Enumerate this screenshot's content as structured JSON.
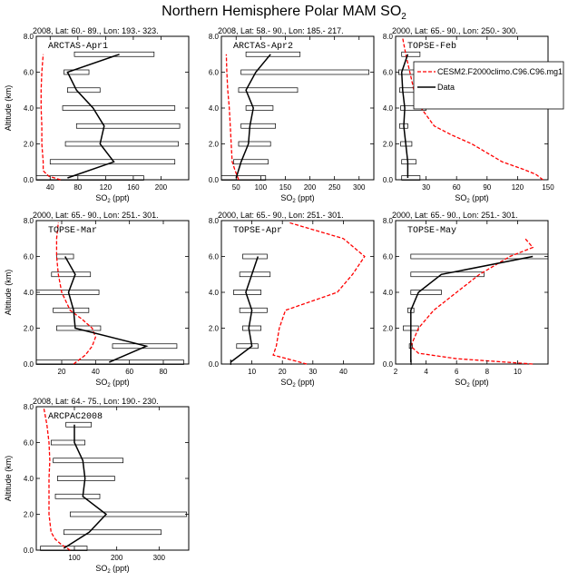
{
  "figure": {
    "title_main": "Northern Hemisphere Polar MAM SO",
    "title_sub": "2",
    "ylabel": "Altitude (km)",
    "xlabel_main": "SO",
    "xlabel_sub": "2",
    "xlabel_unit": " (ppt)"
  },
  "legend": {
    "model": "CESM2.F2000climo.C96.C96.mg1",
    "data": "Data",
    "model_color": "#ff0000",
    "data_color": "#000000"
  },
  "chart_data": [
    {
      "type": "line",
      "header": "2008, Lat:  60.- 89., Lon: 193.- 323.",
      "label": "ARCTAS-Apr1",
      "xlim": [
        20,
        240
      ],
      "xticks": [
        40,
        80,
        120,
        160,
        200
      ],
      "ylim": [
        0,
        8
      ],
      "yticks": [
        0,
        2,
        4,
        6,
        8
      ],
      "obs": {
        "alt": [
          0.1,
          1.0,
          2.0,
          3.0,
          4.0,
          5.0,
          6.0,
          7.0
        ],
        "mean": [
          65,
          132,
          112,
          118,
          102,
          78,
          65,
          140
        ],
        "min": [
          20,
          40,
          62,
          78,
          58,
          65,
          60,
          75
        ],
        "max": [
          175,
          220,
          225,
          227,
          220,
          112,
          96,
          190
        ]
      },
      "model": {
        "alt": [
          0,
          0.2,
          0.5,
          1.0,
          2.0,
          3.0,
          4.0,
          5.0,
          6.0,
          7.0
        ],
        "value": [
          55,
          38,
          30,
          30,
          28,
          28,
          27,
          27,
          28,
          30
        ]
      }
    },
    {
      "type": "line",
      "header": "2008, Lat:  58.- 90., Lon: 185.- 217.",
      "label": "ARCTAS-Apr2",
      "xlim": [
        20,
        330
      ],
      "xticks": [
        50,
        100,
        150,
        200,
        250,
        300
      ],
      "ylim": [
        0,
        8
      ],
      "yticks": [
        0,
        2,
        4,
        6,
        8
      ],
      "obs": {
        "alt": [
          0.1,
          1.0,
          2.0,
          3.0,
          4.0,
          5.0,
          6.0,
          7.0
        ],
        "mean": [
          50,
          60,
          75,
          78,
          85,
          70,
          90,
          120
        ],
        "min": [
          20,
          45,
          55,
          60,
          70,
          55,
          60,
          70
        ],
        "max": [
          110,
          115,
          120,
          130,
          125,
          175,
          320,
          180
        ]
      },
      "model": {
        "alt": [
          0,
          0.5,
          1.0,
          2.0,
          3.0,
          4.0,
          5.0,
          6.0,
          7.0
        ],
        "value": [
          55,
          48,
          42,
          40,
          38,
          36,
          33,
          31,
          30
        ]
      }
    },
    {
      "type": "line",
      "header": "2000, Lat: 65.- 90., Lon: 250.- 300.",
      "label": "TOPSE-Feb",
      "xlim": [
        0,
        150
      ],
      "xticks": [
        0,
        30,
        60,
        90,
        120,
        150
      ],
      "xticklabels": [
        "",
        "30",
        "60",
        "90",
        "120",
        "150"
      ],
      "ylim": [
        0,
        8
      ],
      "yticks": [
        0,
        2,
        4,
        6,
        8
      ],
      "obs": {
        "alt": [
          0.1,
          1.0,
          2.0,
          3.0,
          4.0,
          5.0,
          6.0,
          7.0
        ],
        "mean": [
          12,
          12,
          10,
          8,
          9,
          7,
          6,
          12
        ],
        "min": [
          6,
          6,
          5,
          4,
          5,
          4,
          3,
          6
        ],
        "max": [
          24,
          20,
          16,
          12,
          30,
          22,
          24,
          24
        ]
      },
      "model": {
        "alt": [
          0,
          0.3,
          0.6,
          1.0,
          1.5,
          2.0,
          2.5,
          3.0,
          4.0,
          5.0,
          6.0,
          7.0,
          7.9
        ],
        "value": [
          145,
          138,
          125,
          105,
          90,
          75,
          55,
          38,
          25,
          18,
          14,
          10,
          7
        ]
      }
    },
    {
      "type": "line",
      "header": "2000, Lat: 65.- 90., Lon: 251.- 301.",
      "label": "TOPSE-Mar",
      "xlim": [
        5,
        95
      ],
      "xticks": [
        20,
        40,
        60,
        80
      ],
      "ylim": [
        0,
        8
      ],
      "yticks": [
        0,
        2,
        4,
        6,
        8
      ],
      "obs": {
        "alt": [
          0.1,
          1.0,
          2.0,
          3.0,
          4.0,
          5.0,
          6.0
        ],
        "mean": [
          48,
          70,
          28,
          27,
          24,
          28,
          22
        ],
        "min": [
          5,
          50,
          17,
          15,
          5,
          14,
          17
        ],
        "max": [
          92,
          88,
          43,
          36,
          42,
          37,
          27
        ]
      },
      "model": {
        "alt": [
          0,
          0.5,
          1.0,
          1.5,
          2.0,
          2.5,
          3.0,
          4.0,
          5.0,
          6.0,
          7.0,
          7.9
        ],
        "value": [
          27,
          34,
          38,
          40,
          38,
          32,
          25,
          20,
          18,
          17,
          17,
          18
        ]
      }
    },
    {
      "type": "line",
      "header": "2000, Lat: 65.- 90., Lon: 251.- 301.",
      "label": "TOPSE-Apr",
      "xlim": [
        0,
        50
      ],
      "xticks": [
        10,
        20,
        30,
        40
      ],
      "ylim": [
        0,
        8
      ],
      "yticks": [
        0,
        2,
        4,
        6,
        8
      ],
      "obs": {
        "alt": [
          0.1,
          1.0,
          2.0,
          3.0,
          4.0,
          5.0,
          6.0
        ],
        "mean": [
          3,
          10,
          9,
          10,
          8,
          10,
          12
        ],
        "min": [
          3,
          5,
          7,
          6,
          4,
          6,
          7
        ],
        "max": [
          3,
          12,
          13,
          15,
          13,
          16,
          15
        ]
      },
      "model": {
        "alt": [
          0,
          0.5,
          1.0,
          2.0,
          3.0,
          4.0,
          5.0,
          6.0,
          7.0,
          7.9
        ],
        "value": [
          28,
          17,
          18,
          19,
          21,
          38,
          43,
          47,
          40,
          22
        ]
      }
    },
    {
      "type": "line",
      "header": "2000, Lat: 65.- 90., Lon: 251.- 301.",
      "label": "TOPSE-May",
      "xlim": [
        2,
        12
      ],
      "xticks": [
        2,
        4,
        6,
        8,
        10
      ],
      "ylim": [
        0,
        8
      ],
      "yticks": [
        0,
        2,
        4,
        6,
        8
      ],
      "obs": {
        "alt": [
          0.1,
          1.0,
          2.0,
          3.0,
          4.0,
          5.0,
          6.0
        ],
        "mean": [
          3,
          3,
          3,
          3,
          3.5,
          5,
          11
        ],
        "min": [
          3,
          2.9,
          2.5,
          2.8,
          3,
          3,
          3
        ],
        "max": [
          3,
          3.1,
          3.5,
          3.2,
          5,
          7.8,
          12.8
        ]
      },
      "model": {
        "alt": [
          0,
          0.3,
          0.6,
          1.0,
          2.0,
          3.0,
          4.0,
          5.0,
          6.0,
          6.5,
          7.0
        ],
        "value": [
          11,
          6,
          3.5,
          3,
          3.5,
          4.5,
          6,
          7.5,
          9.5,
          11,
          10.5
        ]
      }
    },
    {
      "type": "line",
      "header": "2008, Lat: 64.- 75., Lon: 190.- 230.",
      "label": "ARCPAC2008",
      "xlim": [
        10,
        370
      ],
      "xticks": [
        100,
        200,
        300
      ],
      "ylim": [
        0,
        8
      ],
      "yticks": [
        0,
        2,
        4,
        6,
        8
      ],
      "obs": {
        "alt": [
          0.1,
          1.0,
          2.0,
          3.0,
          4.0,
          5.0,
          6.0,
          7.0
        ],
        "mean": [
          75,
          135,
          175,
          120,
          125,
          120,
          100,
          100
        ],
        "min": [
          20,
          75,
          90,
          55,
          60,
          50,
          45,
          80
        ],
        "max": [
          130,
          305,
          365,
          160,
          195,
          215,
          125,
          140
        ]
      },
      "model": {
        "alt": [
          0,
          0.3,
          0.6,
          1.0,
          2.0,
          3.0,
          4.0,
          5.0,
          6.0,
          7.0,
          7.9
        ],
        "value": [
          90,
          70,
          55,
          45,
          40,
          40,
          40,
          42,
          40,
          35,
          28
        ]
      }
    }
  ]
}
